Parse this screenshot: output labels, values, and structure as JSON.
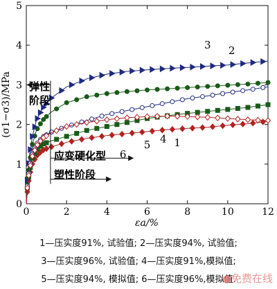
{
  "chart_data": {
    "type": "line",
    "xlabel": "εa/%",
    "ylabel": "(σ1−σ3)/MPa",
    "xlim": [
      0,
      12
    ],
    "ylim": [
      0,
      5
    ],
    "xticks": [
      "0",
      "2",
      "4",
      "6",
      "8",
      "10",
      "12"
    ],
    "yticks": [
      "0",
      "1",
      "2",
      "3",
      "4",
      "5"
    ],
    "grid": false,
    "legend": "below",
    "series": [
      {
        "name": "1",
        "color": "#b22222",
        "marker": "diamond-filled",
        "points": [
          [
            0.05,
            0.3
          ],
          [
            0.15,
            0.7
          ],
          [
            0.3,
            1.0
          ],
          [
            0.5,
            1.2
          ],
          [
            0.8,
            1.35
          ],
          [
            1.2,
            1.43
          ],
          [
            2,
            1.55
          ],
          [
            3,
            1.65
          ],
          [
            4,
            1.72
          ],
          [
            5,
            1.77
          ],
          [
            6,
            1.82
          ],
          [
            7,
            1.87
          ],
          [
            8,
            1.9
          ],
          [
            9,
            1.93
          ],
          [
            10,
            1.98
          ],
          [
            11,
            2.02
          ],
          [
            12,
            2.08
          ]
        ]
      },
      {
        "name": "2",
        "color": "#1a5a1a",
        "marker": "circle-filled",
        "points": [
          [
            0.05,
            0.5
          ],
          [
            0.15,
            1.0
          ],
          [
            0.3,
            1.5
          ],
          [
            0.5,
            1.85
          ],
          [
            0.8,
            2.1
          ],
          [
            1.2,
            2.3
          ],
          [
            2,
            2.55
          ],
          [
            3,
            2.7
          ],
          [
            4,
            2.78
          ],
          [
            5,
            2.83
          ],
          [
            6,
            2.87
          ],
          [
            7,
            2.9
          ],
          [
            8,
            2.93
          ],
          [
            9,
            2.96
          ],
          [
            10,
            2.99
          ],
          [
            11,
            3.02
          ],
          [
            12,
            3.06
          ]
        ]
      },
      {
        "name": "3",
        "color": "#1f2a80",
        "marker": "triangle-right-filled",
        "points": [
          [
            0.05,
            0.6
          ],
          [
            0.15,
            1.2
          ],
          [
            0.3,
            1.7
          ],
          [
            0.5,
            2.1
          ],
          [
            0.8,
            2.4
          ],
          [
            1.2,
            2.65
          ],
          [
            2,
            2.95
          ],
          [
            3,
            3.15
          ],
          [
            4,
            3.27
          ],
          [
            5,
            3.34
          ],
          [
            6,
            3.38
          ],
          [
            7,
            3.41
          ],
          [
            8,
            3.44
          ],
          [
            9,
            3.47
          ],
          [
            10,
            3.5
          ],
          [
            11,
            3.55
          ],
          [
            12,
            3.6
          ]
        ]
      },
      {
        "name": "4",
        "color": "#1a5a1a",
        "marker": "square-filled",
        "points": [
          [
            0.05,
            0.4
          ],
          [
            0.15,
            0.8
          ],
          [
            0.3,
            1.15
          ],
          [
            0.5,
            1.35
          ],
          [
            0.8,
            1.5
          ],
          [
            1.2,
            1.58
          ],
          [
            2,
            1.7
          ],
          [
            3,
            1.85
          ],
          [
            4,
            1.95
          ],
          [
            5,
            2.05
          ],
          [
            6,
            2.15
          ],
          [
            7,
            2.22
          ],
          [
            8,
            2.28
          ],
          [
            9,
            2.33
          ],
          [
            10,
            2.38
          ],
          [
            11,
            2.43
          ],
          [
            12,
            2.5
          ]
        ]
      },
      {
        "name": "5",
        "color": "#1f2a80",
        "marker": "circle-open",
        "points": [
          [
            0.05,
            0.45
          ],
          [
            0.15,
            0.9
          ],
          [
            0.3,
            1.25
          ],
          [
            0.5,
            1.5
          ],
          [
            0.8,
            1.68
          ],
          [
            1.2,
            1.8
          ],
          [
            2,
            1.95
          ],
          [
            3,
            2.1
          ],
          [
            4,
            2.25
          ],
          [
            5,
            2.35
          ],
          [
            6,
            2.45
          ],
          [
            7,
            2.55
          ],
          [
            8,
            2.65
          ],
          [
            9,
            2.72
          ],
          [
            10,
            2.8
          ],
          [
            11,
            2.87
          ],
          [
            12,
            2.95
          ]
        ]
      },
      {
        "name": "6",
        "color": "#b22222",
        "marker": "diamond-open",
        "points": [
          [
            0.05,
            0.4
          ],
          [
            0.15,
            0.85
          ],
          [
            0.3,
            1.2
          ],
          [
            0.5,
            1.45
          ],
          [
            0.8,
            1.65
          ],
          [
            1.2,
            1.78
          ],
          [
            2,
            1.95
          ],
          [
            3,
            2.05
          ],
          [
            4,
            2.12
          ],
          [
            5,
            2.17
          ],
          [
            6,
            2.2
          ],
          [
            7,
            2.21
          ],
          [
            8,
            2.2
          ],
          [
            9,
            2.18
          ],
          [
            10,
            2.15
          ],
          [
            11,
            2.12
          ],
          [
            12,
            2.1
          ]
        ]
      }
    ],
    "curve_labels": [
      {
        "text": "3",
        "x": 9.0,
        "y": 3.92
      },
      {
        "text": "2",
        "x": 10.2,
        "y": 3.78
      },
      {
        "text": "1",
        "x": 7.5,
        "y": 1.45
      },
      {
        "text": "4",
        "x": 6.8,
        "y": 1.55
      },
      {
        "text": "5",
        "x": 6.0,
        "y": 1.4
      },
      {
        "text": "6",
        "x": 4.8,
        "y": 1.15
      }
    ],
    "annotations": {
      "elastic": "弹性\n阶段",
      "hardening": "应变硬化型",
      "plastic": "塑性阶段",
      "stage_boundary_x": 1.2
    }
  },
  "legend_lines": [
    "1—压实度91%, 试验值; 2—压实度94%, 试验值;",
    "3—压实度96%, 试验值; 4—压实度91%,模拟值;",
    "5—压实度94%, 模拟值; 6—压实度96%,模拟值."
  ],
  "watermark": "●免费在线"
}
